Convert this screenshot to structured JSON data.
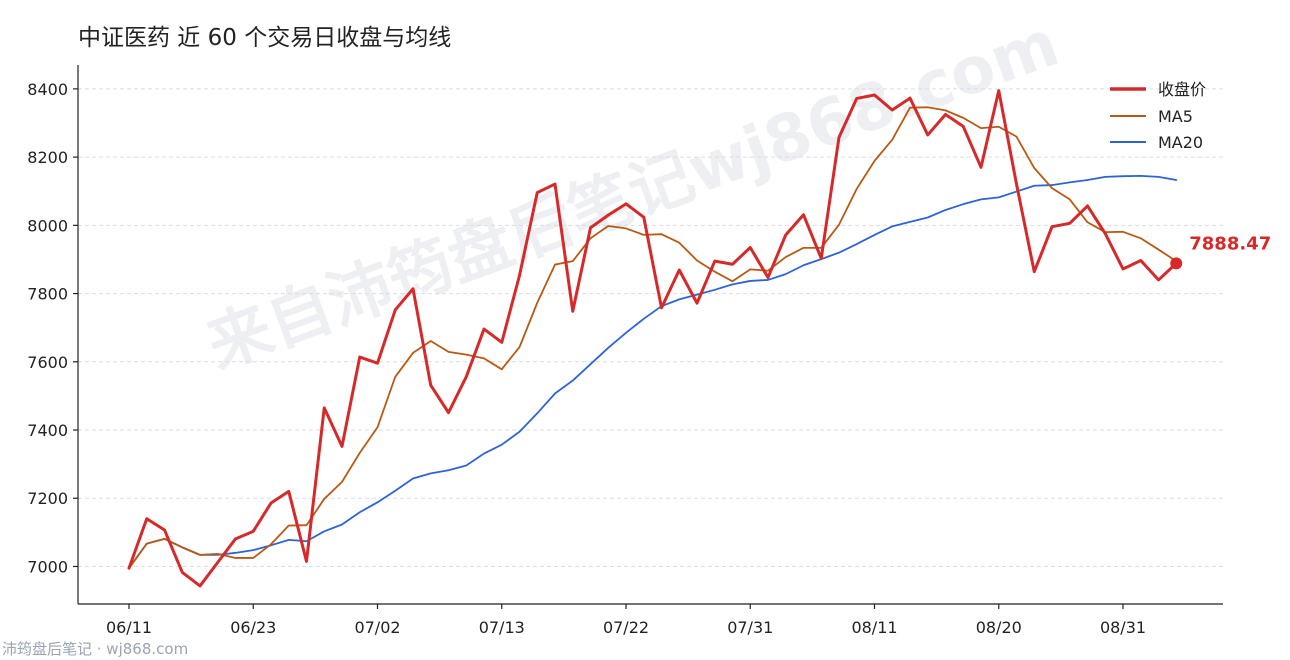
{
  "title": "中证医药 近 60 个交易日收盘与均线",
  "footer": "沛筠盘后笔记 · wj868.com",
  "watermark": "来自沛筠盘后笔记wj868.com",
  "colors": {
    "close": "#d62a2a",
    "ma5": "#b85a14",
    "ma20": "#2e63d6"
  },
  "chart_data": {
    "type": "line",
    "x_tick_labels": [
      "06/11",
      "06/23",
      "07/02",
      "07/13",
      "07/22",
      "07/31",
      "08/11",
      "08/20",
      "08/31"
    ],
    "x_tick_index": [
      0,
      7,
      14,
      21,
      28,
      35,
      42,
      49,
      56
    ],
    "y_ticks": [
      7000,
      7200,
      7400,
      7600,
      7800,
      8000,
      8200,
      8400
    ],
    "ylim": [
      6890,
      8470
    ],
    "x_count": 60,
    "grid": "horizontal-dashed",
    "legend_position": "top-right",
    "series": [
      {
        "name": "收盘价",
        "key": "close",
        "values": [
          6995,
          7140,
          7107,
          6983,
          6943,
          7012,
          7081,
          7103,
          7186,
          7220,
          7015,
          7465,
          7352,
          7614,
          7596,
          7752,
          7814,
          7531,
          7451,
          7556,
          7696,
          7657,
          7853,
          8096,
          8121,
          7748,
          7993,
          8030,
          8063,
          8024,
          7758,
          7869,
          7772,
          7895,
          7886,
          7935,
          7847,
          7972,
          8031,
          7903,
          8258,
          8372,
          8382,
          8338,
          8373,
          8265,
          8325,
          8290,
          8170,
          8395,
          8121,
          7864,
          7996,
          8006,
          8057,
          7976,
          7872,
          7897,
          7840,
          7888.47
        ]
      },
      {
        "name": "MA5",
        "key": "ma5",
        "values": [
          6995,
          7067,
          7081,
          7056,
          7034,
          7037,
          7025,
          7025,
          7065,
          7120,
          7121,
          7198,
          7248,
          7333,
          7408,
          7556,
          7626,
          7661,
          7629,
          7621,
          7610,
          7578,
          7643,
          7773,
          7885,
          7895,
          7962,
          7998,
          7991,
          7972,
          7974,
          7949,
          7897,
          7864,
          7836,
          7871,
          7867,
          7907,
          7934,
          7934,
          8002,
          8107,
          8189,
          8251,
          8345,
          8346,
          8337,
          8315,
          8285,
          8289,
          8260,
          8168,
          8109,
          8076,
          8009,
          7980,
          7981,
          7962,
          7929,
          7895
        ]
      },
      {
        "name": "MA20",
        "key": "ma20",
        "values": [
          6995,
          7067,
          7081,
          7056,
          7034,
          7034,
          7040,
          7048,
          7062,
          7078,
          7074,
          7103,
          7123,
          7159,
          7188,
          7222,
          7258,
          7273,
          7282,
          7296,
          7331,
          7357,
          7395,
          7449,
          7507,
          7545,
          7593,
          7641,
          7685,
          7726,
          7763,
          7783,
          7797,
          7811,
          7827,
          7837,
          7840,
          7857,
          7883,
          7901,
          7920,
          7945,
          7972,
          7997,
          8010,
          8023,
          8045,
          8062,
          8076,
          8082,
          8099,
          8116,
          8118,
          8126,
          8133,
          8142,
          8144,
          8145,
          8142,
          8133
        ]
      }
    ],
    "last_value_label": "7888.47"
  }
}
